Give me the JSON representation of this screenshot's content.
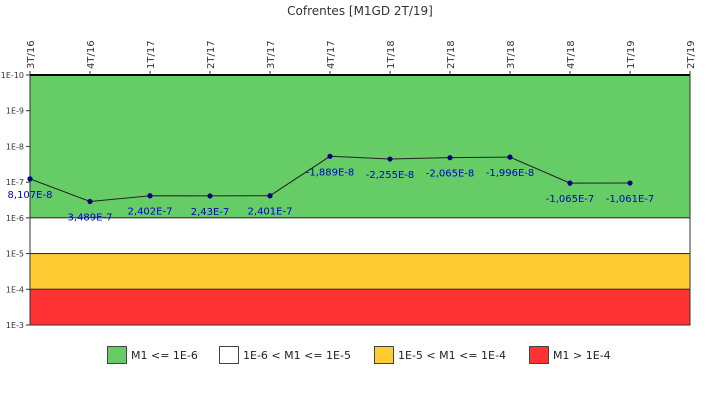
{
  "chart_data": {
    "type": "line",
    "title": "Cofrentes [M1GD 2T/19]",
    "categories": [
      "3T/16",
      "4T/16",
      "1T/17",
      "2T/17",
      "3T/17",
      "4T/17",
      "1T/18",
      "2T/18",
      "3T/18",
      "4T/18",
      "1T/19",
      "2T/19"
    ],
    "y_scale": "log",
    "y_axis_inverted": true,
    "y_tick_labels": [
      "1E-10",
      "1E-9",
      "1E-8",
      "1E-7",
      "1E-6",
      "1E-5",
      "1E-4",
      "1E-3"
    ],
    "ylim": [
      1e-10,
      0.001
    ],
    "series": [
      {
        "values": [
          8.107e-08,
          3.489e-07,
          2.402e-07,
          2.43e-07,
          2.401e-07,
          -1.889e-08,
          -2.255e-08,
          -2.065e-08,
          -1.996e-08,
          -1.065e-07,
          -1.061e-07,
          null
        ],
        "labels": [
          "8,107E-8",
          "3,489E-7",
          "2,402E-7",
          "2,43E-7",
          "2,401E-7",
          "-1,889E-8",
          "-2,255E-8",
          "-2,065E-8",
          "-1,996E-8",
          "-1,065E-7",
          "-1,061E-7",
          ""
        ],
        "color": "#000080"
      }
    ],
    "bands": [
      {
        "from": 1e-10,
        "to": 1e-06,
        "color": "#66cc66",
        "label": "M1 <= 1E-6"
      },
      {
        "from": 1e-06,
        "to": 1e-05,
        "color": "#ffffff",
        "label": "1E-6 < M1 <= 1E-5"
      },
      {
        "from": 1e-05,
        "to": 0.0001,
        "color": "#ffcc33",
        "label": "1E-5 < M1 <= 1E-4"
      },
      {
        "from": 0.0001,
        "to": 0.001,
        "color": "#ff3333",
        "label": "M1 > 1E-4"
      }
    ],
    "legend_position": "bottom"
  }
}
